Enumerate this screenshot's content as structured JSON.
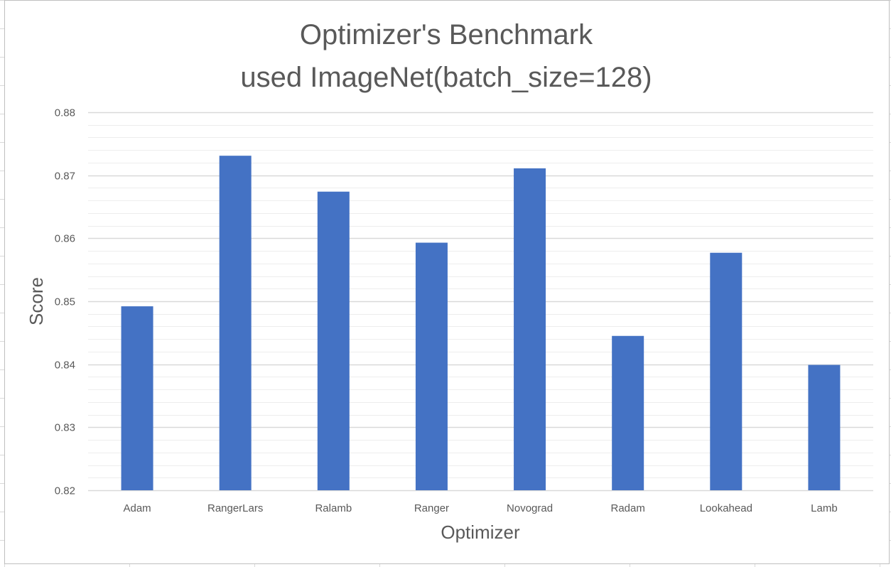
{
  "chart_data": {
    "type": "bar",
    "title": [
      "Optimizer's Benchmark",
      "used ImageNet(batch_size=128)"
    ],
    "xlabel": "Optimizer",
    "ylabel": "Score",
    "categories": [
      "Adam",
      "RangerLars",
      "Ralamb",
      "Ranger",
      "Novograd",
      "Radam",
      "Lookahead",
      "Lamb"
    ],
    "values": [
      0.8492,
      0.8731,
      0.8674,
      0.8593,
      0.8711,
      0.8445,
      0.8577,
      0.8399
    ],
    "ylim": [
      0.82,
      0.88
    ],
    "yticks": [
      "0.82",
      "0.83",
      "0.84",
      "0.85",
      "0.86",
      "0.87",
      "0.88"
    ],
    "grid": true,
    "minor_grid": true,
    "legend": "none",
    "bar_color": "#4472C4",
    "gridline_color": "#d9d9d9",
    "minor_gridline_color": "#ededed"
  }
}
